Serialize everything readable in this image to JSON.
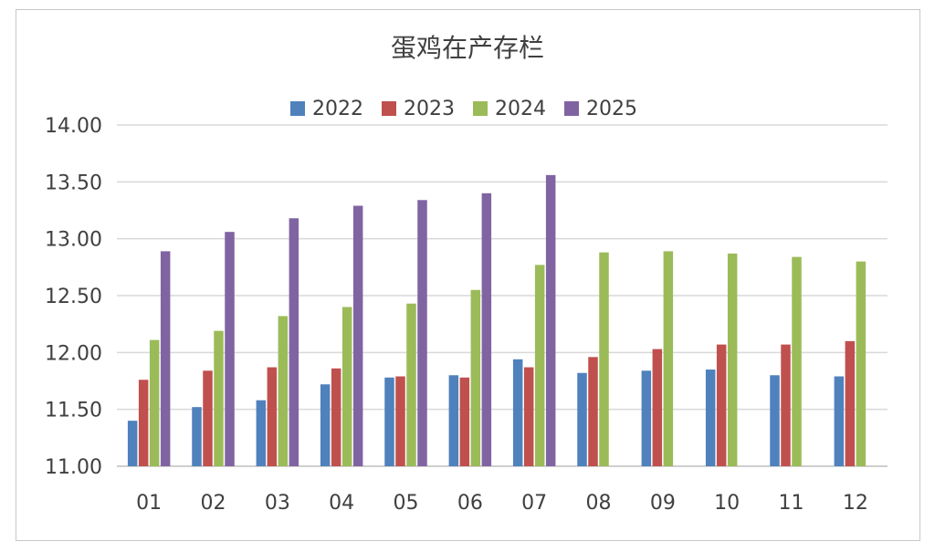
{
  "chart_data": {
    "type": "bar",
    "title": "蛋鸡在产存栏",
    "categories": [
      "01",
      "02",
      "03",
      "04",
      "05",
      "06",
      "07",
      "08",
      "09",
      "10",
      "11",
      "12"
    ],
    "ylim": [
      11.0,
      14.0
    ],
    "yticks": [
      "11.00",
      "11.50",
      "12.00",
      "12.50",
      "13.00",
      "13.50",
      "14.00"
    ],
    "grid": true,
    "legend_position": "top",
    "series": [
      {
        "name": "2022",
        "color": "#4f81bd",
        "values": [
          11.4,
          11.52,
          11.58,
          11.72,
          11.78,
          11.8,
          11.94,
          11.82,
          11.84,
          11.85,
          11.8,
          11.79
        ]
      },
      {
        "name": "2023",
        "color": "#c0504d",
        "values": [
          11.76,
          11.84,
          11.87,
          11.86,
          11.79,
          11.78,
          11.87,
          11.96,
          12.03,
          12.07,
          12.07,
          12.1
        ]
      },
      {
        "name": "2024",
        "color": "#9bbb59",
        "values": [
          12.11,
          12.19,
          12.32,
          12.4,
          12.43,
          12.55,
          12.77,
          12.88,
          12.89,
          12.87,
          12.84,
          12.8
        ]
      },
      {
        "name": "2025",
        "color": "#8064a2",
        "values": [
          12.89,
          13.06,
          13.18,
          13.29,
          13.34,
          13.4,
          13.56,
          null,
          null,
          null,
          null,
          null
        ]
      }
    ]
  }
}
